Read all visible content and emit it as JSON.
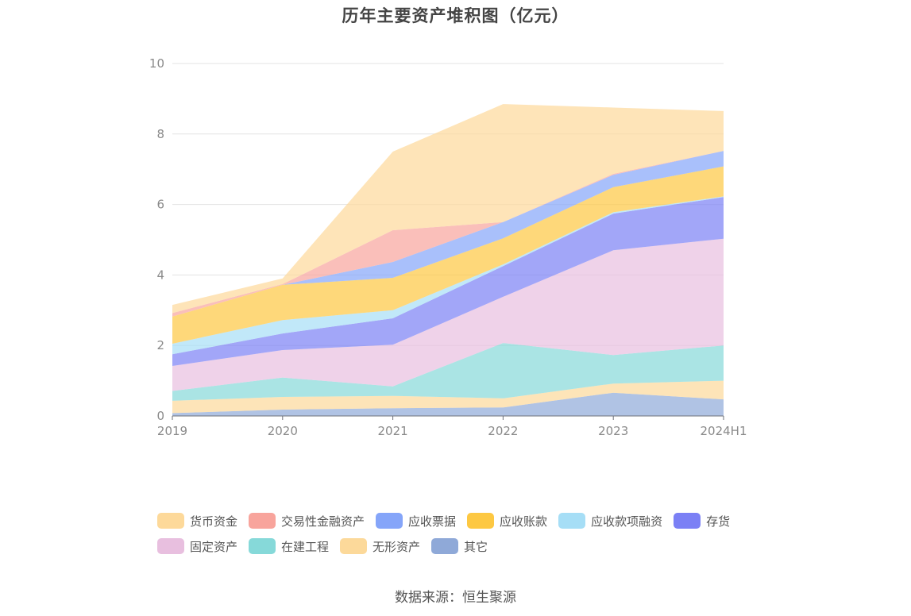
{
  "chart_data": {
    "type": "area",
    "stacked": true,
    "title": "历年主要资产堆积图（亿元）",
    "categories": [
      "2019",
      "2020",
      "2021",
      "2022",
      "2023",
      "2024H1"
    ],
    "ylim": [
      0,
      10
    ],
    "yticks": [
      0,
      2,
      4,
      6,
      8,
      10
    ],
    "grid": true,
    "legend_position": "bottom",
    "series": [
      {
        "name": "其它",
        "color": "#8fa9d8",
        "values": [
          0.08,
          0.18,
          0.22,
          0.24,
          0.66,
          0.47
        ]
      },
      {
        "name": "无形资产",
        "color": "#fcd99a",
        "values": [
          0.35,
          0.36,
          0.35,
          0.26,
          0.26,
          0.53
        ]
      },
      {
        "name": "在建工程",
        "color": "#86d9d9",
        "values": [
          0.28,
          0.55,
          0.27,
          1.57,
          0.81,
          1.0
        ]
      },
      {
        "name": "固定资产",
        "color": "#e8bfdf",
        "values": [
          0.71,
          0.78,
          1.18,
          1.31,
          2.97,
          3.03
        ]
      },
      {
        "name": "存货",
        "color": "#7b80f5",
        "values": [
          0.33,
          0.47,
          0.75,
          0.87,
          1.04,
          1.18
        ]
      },
      {
        "name": "应收款项融资",
        "color": "#a6def6",
        "values": [
          0.3,
          0.38,
          0.23,
          0.05,
          0.04,
          0.02
        ]
      },
      {
        "name": "应收账款",
        "color": "#fdc842",
        "values": [
          0.77,
          1.0,
          0.92,
          0.74,
          0.71,
          0.85
        ]
      },
      {
        "name": "应收票据",
        "color": "#85a5f9",
        "values": [
          0.0,
          0.0,
          0.45,
          0.46,
          0.35,
          0.44
        ]
      },
      {
        "name": "交易性金融资产",
        "color": "#f8a49c",
        "values": [
          0.1,
          0.02,
          0.9,
          0.0,
          0.03,
          0.0
        ]
      },
      {
        "name": "货币资金",
        "color": "#fdd99a",
        "values": [
          0.23,
          0.16,
          2.23,
          3.35,
          1.88,
          1.13
        ]
      }
    ]
  },
  "legend": {
    "rows": [
      [
        {
          "label": "货币资金",
          "color": "#fdd99a"
        },
        {
          "label": "交易性金融资产",
          "color": "#f8a49c"
        },
        {
          "label": "应收票据",
          "color": "#85a5f9"
        },
        {
          "label": "应收账款",
          "color": "#fdc842"
        },
        {
          "label": "应收款项融资",
          "color": "#a6def6"
        },
        {
          "label": "存货",
          "color": "#7b80f5"
        }
      ],
      [
        {
          "label": "固定资产",
          "color": "#e8bfdf"
        },
        {
          "label": "在建工程",
          "color": "#86d9d9"
        },
        {
          "label": "无形资产",
          "color": "#fcd99a"
        },
        {
          "label": "其它",
          "color": "#8fa9d8"
        }
      ]
    ]
  },
  "source": "数据来源：恒生聚源"
}
